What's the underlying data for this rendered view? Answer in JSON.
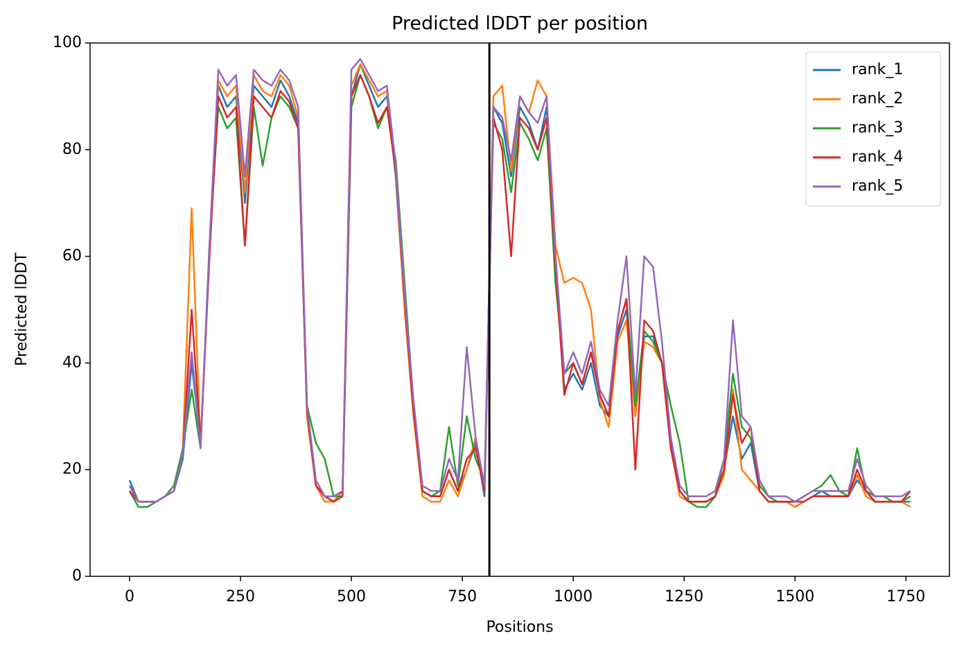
{
  "chart_data": {
    "type": "line",
    "title": "Predicted lDDT per position",
    "xlabel": "Positions",
    "ylabel": "Predicted lDDT",
    "xlim": [
      -89,
      1848
    ],
    "xticks": [
      0,
      250,
      500,
      750,
      1000,
      1250,
      1500,
      1750
    ],
    "ylim": [
      0,
      100
    ],
    "yticks": [
      0,
      20,
      40,
      60,
      80,
      100
    ],
    "vline": 811,
    "legend": "upper right",
    "x": [
      0,
      20,
      40,
      60,
      80,
      100,
      120,
      140,
      160,
      180,
      200,
      220,
      240,
      260,
      280,
      300,
      320,
      340,
      360,
      380,
      400,
      420,
      440,
      460,
      480,
      500,
      520,
      540,
      560,
      580,
      600,
      620,
      640,
      660,
      680,
      700,
      720,
      740,
      760,
      780,
      800,
      820,
      840,
      860,
      880,
      900,
      920,
      940,
      960,
      980,
      1000,
      1020,
      1040,
      1060,
      1080,
      1100,
      1120,
      1140,
      1160,
      1180,
      1200,
      1220,
      1240,
      1260,
      1280,
      1300,
      1320,
      1340,
      1360,
      1380,
      1400,
      1420,
      1440,
      1460,
      1480,
      1500,
      1520,
      1540,
      1560,
      1580,
      1600,
      1620,
      1640,
      1660,
      1680,
      1700,
      1720,
      1740,
      1760
    ],
    "series": [
      {
        "name": "rank_1",
        "color": "#1f77b4",
        "values": [
          18,
          14,
          14,
          14,
          15,
          16,
          22,
          40,
          25,
          60,
          92,
          88,
          90,
          70,
          92,
          90,
          88,
          93,
          90,
          85,
          30,
          17,
          15,
          14,
          16,
          90,
          96,
          92,
          88,
          90,
          75,
          50,
          30,
          16,
          15,
          15,
          20,
          16,
          20,
          25,
          15,
          88,
          85,
          75,
          88,
          85,
          80,
          88,
          60,
          35,
          38,
          35,
          40,
          32,
          30,
          45,
          50,
          30,
          45,
          45,
          40,
          25,
          16,
          14,
          14,
          14,
          15,
          20,
          30,
          22,
          25,
          16,
          14,
          14,
          14,
          13,
          14,
          15,
          16,
          15,
          15,
          15,
          18,
          16,
          14,
          14,
          14,
          14,
          14
        ]
      },
      {
        "name": "rank_2",
        "color": "#ff7f0e",
        "values": [
          17,
          14,
          14,
          14,
          15,
          16,
          24,
          69,
          24,
          60,
          93,
          90,
          92,
          72,
          94,
          91,
          90,
          94,
          92,
          86,
          30,
          17,
          14,
          14,
          16,
          92,
          96,
          93,
          90,
          91,
          76,
          50,
          30,
          15,
          14,
          14,
          18,
          15,
          20,
          26,
          16,
          90,
          92,
          76,
          90,
          87,
          93,
          90,
          62,
          55,
          56,
          55,
          50,
          33,
          28,
          44,
          48,
          30,
          44,
          43,
          40,
          24,
          15,
          14,
          14,
          14,
          15,
          19,
          35,
          20,
          18,
          16,
          14,
          14,
          14,
          13,
          14,
          15,
          15,
          15,
          15,
          15,
          19,
          15,
          14,
          14,
          14,
          14,
          13
        ]
      },
      {
        "name": "rank_3",
        "color": "#2ca02c",
        "values": [
          16,
          13,
          13,
          14,
          15,
          17,
          24,
          35,
          24,
          62,
          88,
          84,
          86,
          62,
          88,
          77,
          86,
          90,
          88,
          84,
          32,
          25,
          22,
          15,
          15,
          88,
          94,
          90,
          84,
          88,
          78,
          55,
          32,
          16,
          15,
          16,
          28,
          17,
          30,
          22,
          18,
          85,
          82,
          72,
          85,
          82,
          78,
          84,
          55,
          38,
          40,
          36,
          42,
          34,
          30,
          46,
          52,
          32,
          46,
          44,
          40,
          32,
          25,
          14,
          13,
          13,
          15,
          22,
          38,
          28,
          26,
          17,
          15,
          14,
          14,
          14,
          15,
          16,
          17,
          19,
          16,
          15,
          24,
          16,
          15,
          15,
          14,
          14,
          15
        ]
      },
      {
        "name": "rank_4",
        "color": "#d62728",
        "values": [
          16,
          14,
          14,
          14,
          15,
          16,
          23,
          50,
          25,
          60,
          90,
          86,
          88,
          62,
          90,
          88,
          86,
          91,
          89,
          84,
          31,
          17,
          15,
          14,
          15,
          90,
          94,
          90,
          85,
          88,
          76,
          52,
          31,
          16,
          15,
          15,
          20,
          16,
          22,
          24,
          16,
          86,
          80,
          60,
          86,
          84,
          80,
          86,
          58,
          34,
          40,
          36,
          42,
          34,
          30,
          46,
          52,
          20,
          48,
          46,
          40,
          24,
          16,
          14,
          14,
          14,
          15,
          20,
          34,
          25,
          28,
          16,
          14,
          14,
          14,
          14,
          14,
          15,
          15,
          15,
          15,
          15,
          20,
          16,
          14,
          14,
          14,
          14,
          16
        ]
      },
      {
        "name": "rank_5",
        "color": "#9467bd",
        "values": [
          17,
          14,
          14,
          14,
          15,
          16,
          23,
          42,
          24,
          62,
          95,
          92,
          94,
          75,
          95,
          93,
          92,
          95,
          93,
          88,
          32,
          18,
          15,
          15,
          16,
          95,
          97,
          94,
          91,
          92,
          77,
          53,
          33,
          17,
          16,
          16,
          22,
          18,
          43,
          26,
          17,
          88,
          86,
          78,
          90,
          87,
          85,
          90,
          60,
          38,
          42,
          38,
          44,
          35,
          32,
          48,
          60,
          34,
          60,
          58,
          44,
          26,
          17,
          15,
          15,
          15,
          16,
          22,
          48,
          30,
          28,
          18,
          15,
          15,
          15,
          14,
          15,
          16,
          16,
          16,
          16,
          16,
          22,
          17,
          15,
          15,
          15,
          15,
          16
        ]
      }
    ]
  }
}
